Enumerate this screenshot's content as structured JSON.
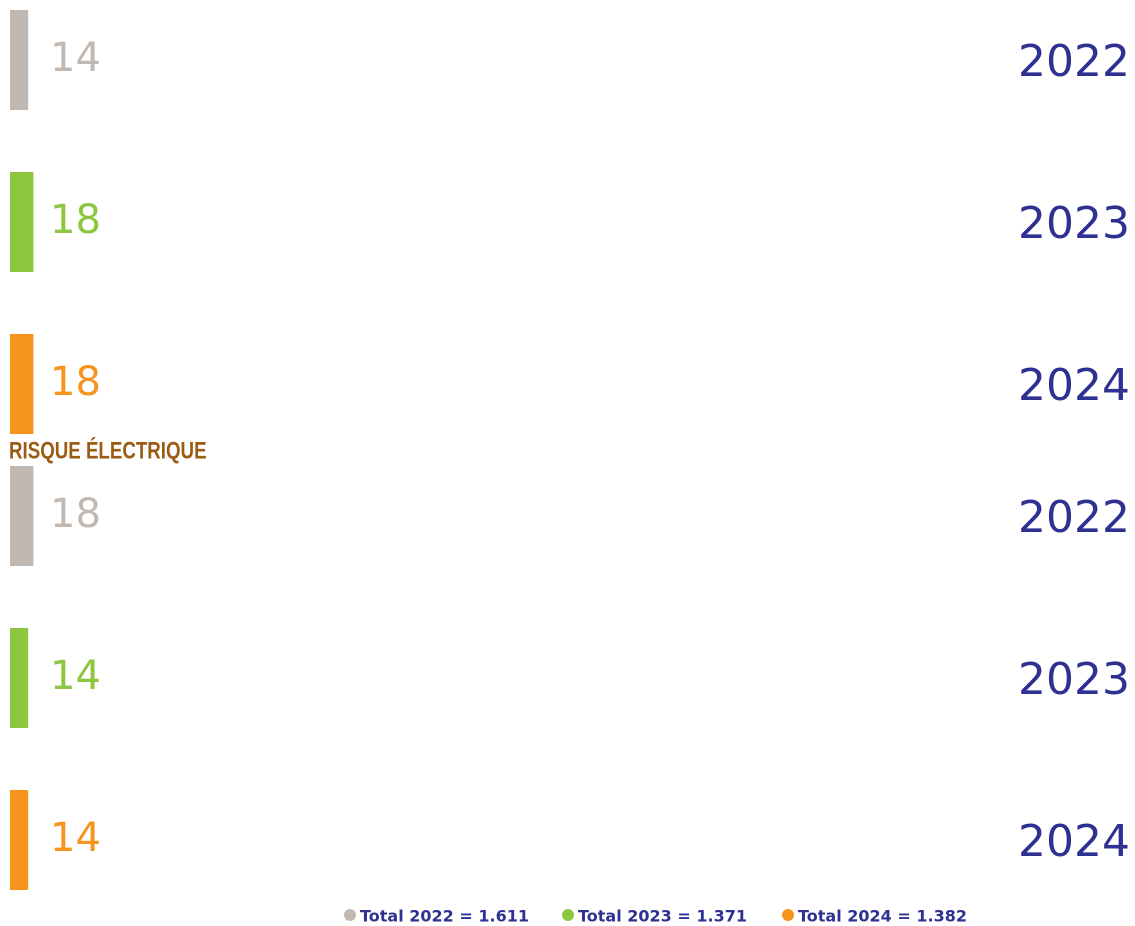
{
  "groups": [
    {
      "rows": [
        {
          "value": 14,
          "year": "2022",
          "color": "#c2b8b2"
        },
        {
          "value": 18,
          "year": "2023",
          "color": "#8dc63f"
        },
        {
          "value": 18,
          "year": "2024",
          "color": "#f7941d"
        }
      ]
    },
    {
      "title": "RISQUE ÉLECTRIQUE",
      "rows": [
        {
          "value": 18,
          "year": "2022",
          "color": "#c2b8b2"
        },
        {
          "value": 14,
          "year": "2023",
          "color": "#8dc63f"
        },
        {
          "value": 14,
          "year": "2024",
          "color": "#f7941d"
        }
      ]
    }
  ],
  "legend": [
    {
      "label": "Total 2022 = 1.611",
      "color": "#c2b8b2"
    },
    {
      "label": "Total 2023 = 1.371",
      "color": "#8dc63f"
    },
    {
      "label": "Total 2024 = 1.382",
      "color": "#f7941d"
    }
  ]
}
